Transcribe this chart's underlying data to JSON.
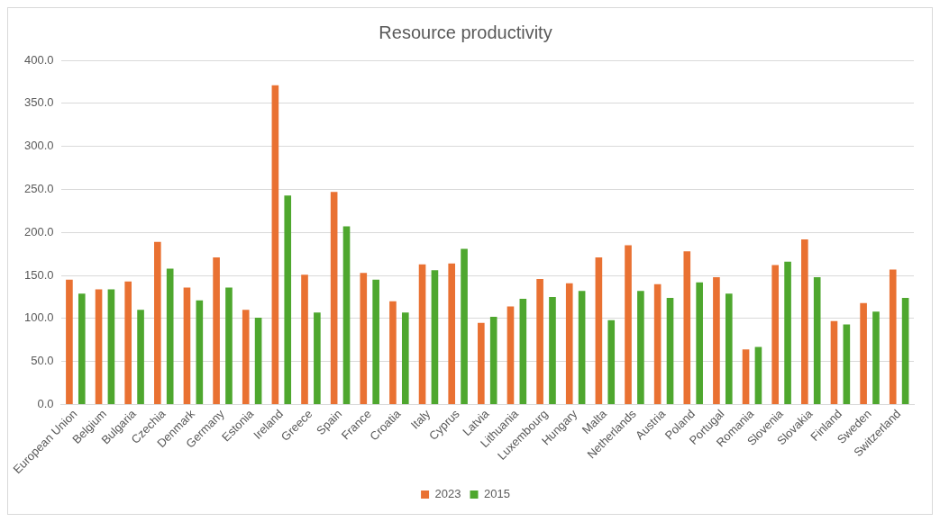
{
  "chart_data": {
    "type": "bar",
    "title": "Resource productivity",
    "categories": [
      "European Union",
      "Belgium",
      "Bulgaria",
      "Czechia",
      "Denmark",
      "Germany",
      "Estonia",
      "Ireland",
      "Greece",
      "Spain",
      "France",
      "Croatia",
      "Italy",
      "Cyprus",
      "Latvia",
      "Lithuania",
      "Luxembourg",
      "Hungary",
      "Malta",
      "Netherlands",
      "Austria",
      "Poland",
      "Portugal",
      "Romania",
      "Slovenia",
      "Slovakia",
      "Finland",
      "Sweden",
      "Switzerland"
    ],
    "series": [
      {
        "name": "2023",
        "color": "#e97132",
        "values": [
          145,
          134,
          143,
          189,
          136,
          171,
          110,
          371,
          151,
          247,
          153,
          120,
          163,
          164,
          95,
          114,
          146,
          141,
          171,
          185,
          140,
          178,
          148,
          64,
          162,
          192,
          97,
          118,
          157
        ]
      },
      {
        "name": "2015",
        "color": "#4ea72e",
        "values": [
          129,
          134,
          110,
          158,
          121,
          136,
          101,
          243,
          107,
          207,
          145,
          107,
          156,
          181,
          102,
          123,
          125,
          132,
          98,
          132,
          124,
          142,
          129,
          67,
          166,
          148,
          93,
          108,
          124
        ]
      }
    ],
    "ylim": [
      0,
      400
    ],
    "yticks": [
      {
        "value": 0,
        "label": "0.0"
      },
      {
        "value": 50,
        "label": "50.0"
      },
      {
        "value": 100,
        "label": "100.0"
      },
      {
        "value": 150,
        "label": "150.0"
      },
      {
        "value": 200,
        "label": "200.0"
      },
      {
        "value": 250,
        "label": "250.0"
      },
      {
        "value": 300,
        "label": "300.0"
      },
      {
        "value": 350,
        "label": "350.0"
      },
      {
        "value": 400,
        "label": "400.0"
      }
    ],
    "grid": "y",
    "legend": "bottom"
  }
}
